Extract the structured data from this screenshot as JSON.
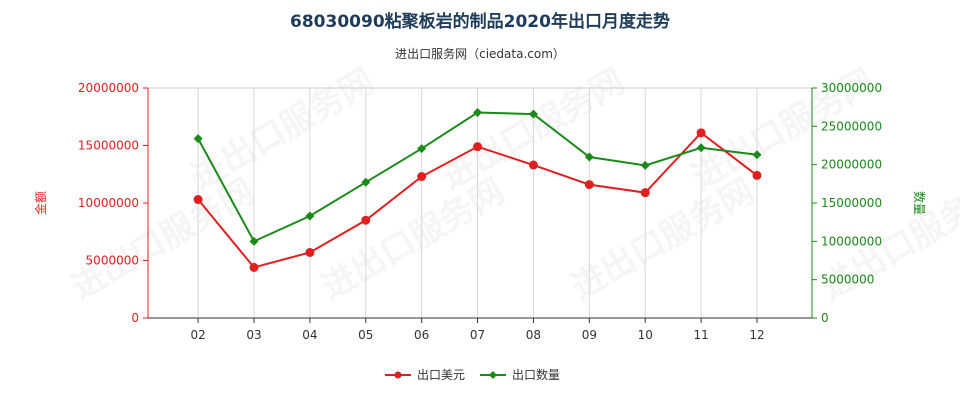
{
  "chart_data": {
    "type": "line",
    "title": "68030090粘聚板岩的制品2020年出口月度走势",
    "subtitle": "进出口服务网（ciedata.com）",
    "categories": [
      "02",
      "03",
      "04",
      "05",
      "06",
      "07",
      "08",
      "09",
      "10",
      "11",
      "12"
    ],
    "left_axis": {
      "label": "金额",
      "range": [
        0,
        20000000
      ],
      "ticks": [
        "0",
        "5000000",
        "10000000",
        "15000000",
        "20000000"
      ],
      "color": "#e02020"
    },
    "right_axis": {
      "label": "数量",
      "range": [
        0,
        30000000
      ],
      "ticks": [
        "0",
        "5000000",
        "10000000",
        "15000000",
        "20000000",
        "25000000",
        "30000000"
      ],
      "color": "#1a8a1a"
    },
    "series": [
      {
        "name": "出口美元",
        "axis": "left",
        "color": "#e02020",
        "marker": "circle",
        "values": [
          10300000,
          4400000,
          5700000,
          8500000,
          12300000,
          14900000,
          13300000,
          11600000,
          10900000,
          16100000,
          12400000
        ]
      },
      {
        "name": "出口数量",
        "axis": "right",
        "color": "#1a8a1a",
        "marker": "diamond",
        "values": [
          23400000,
          10000000,
          13300000,
          17700000,
          22100000,
          26800000,
          26600000,
          21000000,
          19900000,
          22200000,
          21300000
        ]
      }
    ],
    "grid": "vertical",
    "legend_position": "bottom-center",
    "watermark": "进出口服务网"
  }
}
